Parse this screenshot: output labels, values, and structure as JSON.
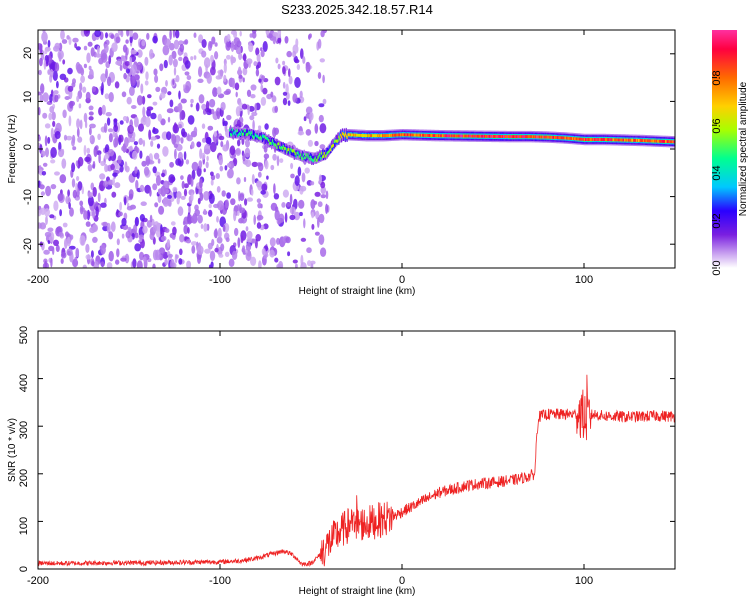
{
  "title": "S233.2025.342.18.57.R14",
  "chart_data": [
    {
      "type": "heatmap",
      "xlabel": "Height of straight line (km)",
      "ylabel": "Frequency (Hz)",
      "xlim": [
        -200,
        150
      ],
      "ylim": [
        -25,
        25
      ],
      "x_ticks": [
        -200,
        -100,
        0,
        100
      ],
      "y_ticks": [
        -20,
        -10,
        0,
        10,
        20
      ],
      "colorbar": {
        "label": "Normalized spectral amplitude",
        "range": [
          0,
          1
        ],
        "ticks": [
          "0.0",
          "0.2",
          "0.4",
          "0.6",
          "0.8"
        ],
        "colors": [
          "#ffffff",
          "#c9a2f0",
          "#7a1fe0",
          "#2a00ff",
          "#00c8ff",
          "#00ff90",
          "#a8ff00",
          "#ffd000",
          "#ff6a00",
          "#ff0040",
          "#ff30a0"
        ]
      },
      "ridge": {
        "x": [
          -95,
          -85,
          -78,
          -70,
          -62,
          -55,
          -48,
          -42,
          -38,
          -34,
          -30,
          -20,
          -10,
          0,
          20,
          40,
          60,
          66,
          70,
          80,
          90,
          100,
          110,
          130,
          150
        ],
        "frequency": [
          3.5,
          3.2,
          2.5,
          1.0,
          -0.5,
          -1.5,
          -2.0,
          -1.0,
          1.0,
          2.8,
          3.0,
          2.8,
          2.8,
          3.0,
          2.8,
          2.7,
          2.6,
          2.6,
          2.6,
          2.5,
          2.3,
          2.0,
          2.0,
          1.8,
          1.5
        ],
        "peak_amplitude": [
          0.45,
          0.5,
          0.45,
          0.5,
          0.55,
          0.45,
          0.5,
          0.55,
          0.6,
          0.65,
          0.7,
          0.7,
          0.75,
          0.8,
          0.85,
          0.9,
          0.9,
          0.85,
          0.9,
          0.85,
          0.8,
          0.85,
          0.85,
          0.8,
          0.85
        ]
      },
      "noise_region": {
        "x_range": [
          -200,
          -40
        ],
        "note_level": 0.2
      }
    },
    {
      "type": "line",
      "xlabel": "Height of straight line (km)",
      "ylabel": "SNR (10 * v/v)",
      "xlim": [
        -200,
        150
      ],
      "ylim": [
        0,
        500
      ],
      "x_ticks": [
        -200,
        -100,
        0,
        100
      ],
      "y_ticks": [
        0,
        100,
        200,
        300,
        400,
        500
      ],
      "color": "#ee2222",
      "series": [
        {
          "x": [
            -200,
            -180,
            -160,
            -140,
            -120,
            -100,
            -90,
            -80,
            -75,
            -70,
            -65,
            -60,
            -55,
            -50,
            -45,
            -40,
            -35,
            -30,
            -25,
            -20,
            -15,
            -10,
            -5,
            0,
            5,
            10,
            15,
            20,
            25,
            30,
            35,
            40,
            45,
            50,
            55,
            60,
            65,
            70,
            73,
            74,
            75,
            80,
            85,
            90,
            95,
            98,
            100,
            102,
            105,
            110,
            120,
            130,
            140,
            150
          ],
          "y": [
            12,
            12,
            13,
            13,
            14,
            15,
            17,
            22,
            28,
            33,
            38,
            30,
            10,
            12,
            30,
            55,
            75,
            90,
            95,
            95,
            100,
            105,
            110,
            120,
            130,
            140,
            150,
            160,
            165,
            170,
            175,
            178,
            180,
            182,
            184,
            186,
            190,
            195,
            200,
            280,
            320,
            325,
            325,
            325,
            325,
            330,
            320,
            320,
            325,
            322,
            320,
            320,
            322,
            320
          ]
        }
      ]
    }
  ],
  "labels": {
    "top_xlabel": "Height of straight line (km)",
    "top_ylabel": "Frequency (Hz)",
    "bottom_xlabel": "Height of straight line (km)",
    "bottom_ylabel": "SNR (10 * v/v)",
    "cbar_label": "Normalized spectral amplitude",
    "top_xticks": [
      "-200",
      "-100",
      "0",
      "100"
    ],
    "top_yticks": [
      "20",
      "10",
      "0",
      "-10",
      "-20"
    ],
    "bot_xticks": [
      "-200",
      "-100",
      "0",
      "100"
    ],
    "bot_yticks": [
      "500",
      "400",
      "300",
      "200",
      "100",
      "0"
    ],
    "cbar_ticks": [
      "0.0",
      "0.2",
      "0.4",
      "0.6",
      "0.8"
    ]
  }
}
